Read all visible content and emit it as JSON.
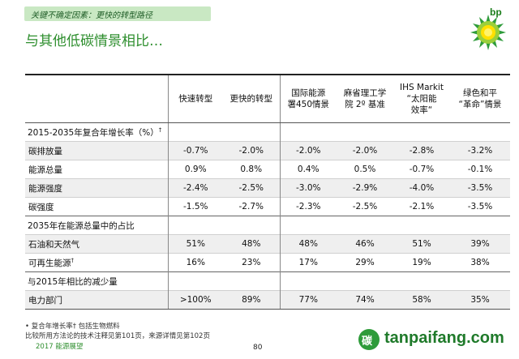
{
  "banner": "关键不确定因素：更快的转型路径",
  "title": "与其他低碳情景相比…",
  "logo_text": "bp",
  "table": {
    "headers": [
      "快速转型",
      "更快的转型",
      "国际能源署450情景",
      "麻省理工学院 2º 基准",
      "IHS Markit “太阳能效率“",
      "绿色和平 “革命”情景"
    ],
    "header_lines": [
      [
        "快速转型"
      ],
      [
        "更快的转型"
      ],
      [
        "国际能源",
        "署450情景"
      ],
      [
        "麻省理工学",
        "院 2º 基准"
      ],
      [
        "IHS Markit",
        "“太阳能",
        "效率“"
      ],
      [
        "绿色和平",
        "“革命”情景"
      ]
    ],
    "section1": {
      "label": "2015-2035年复合年增长率（%）",
      "dagger": "†",
      "rows": [
        {
          "label": "碳排放量",
          "values": [
            "-0.7%",
            "-2.0%",
            "-2.0%",
            "-2.0%",
            "-2.8%",
            "-3.2%"
          ]
        },
        {
          "label": "能源总量",
          "values": [
            "0.9%",
            "0.8%",
            "0.4%",
            "0.5%",
            "-0.7%",
            "-0.1%"
          ]
        },
        {
          "label": "能源强度",
          "values": [
            "-2.4%",
            "-2.5%",
            "-3.0%",
            "-2.9%",
            "-4.0%",
            "-3.5%"
          ]
        },
        {
          "label": "碳强度",
          "values": [
            "-1.5%",
            "-2.7%",
            "-2.3%",
            "-2.5%",
            "-2.1%",
            "-3.5%"
          ]
        }
      ]
    },
    "section2": {
      "label": "2035年在能源总量中的占比",
      "rows": [
        {
          "label": "石油和天然气",
          "values": [
            "51%",
            "48%",
            "48%",
            "46%",
            "51%",
            "39%"
          ]
        },
        {
          "label": "可再生能源",
          "dagger": "†",
          "values": [
            "16%",
            "23%",
            "17%",
            "29%",
            "19%",
            "38%"
          ]
        }
      ]
    },
    "section3": {
      "label": "与2015年相比的减少量",
      "rows": [
        {
          "label": "电力部门",
          "values": [
            ">100%",
            "89%",
            "77%",
            "74%",
            "58%",
            "35%"
          ]
        }
      ]
    }
  },
  "notes": {
    "line1": "•  复合年增长率† 包括生物燃料",
    "line2": "比较所用方法论的技术注释见第101页，来源详情见第102页"
  },
  "footer": {
    "left": "2017 能源展望",
    "page": "80",
    "watermark": "tanpaifang.com",
    "watermark_icon": "碳"
  }
}
